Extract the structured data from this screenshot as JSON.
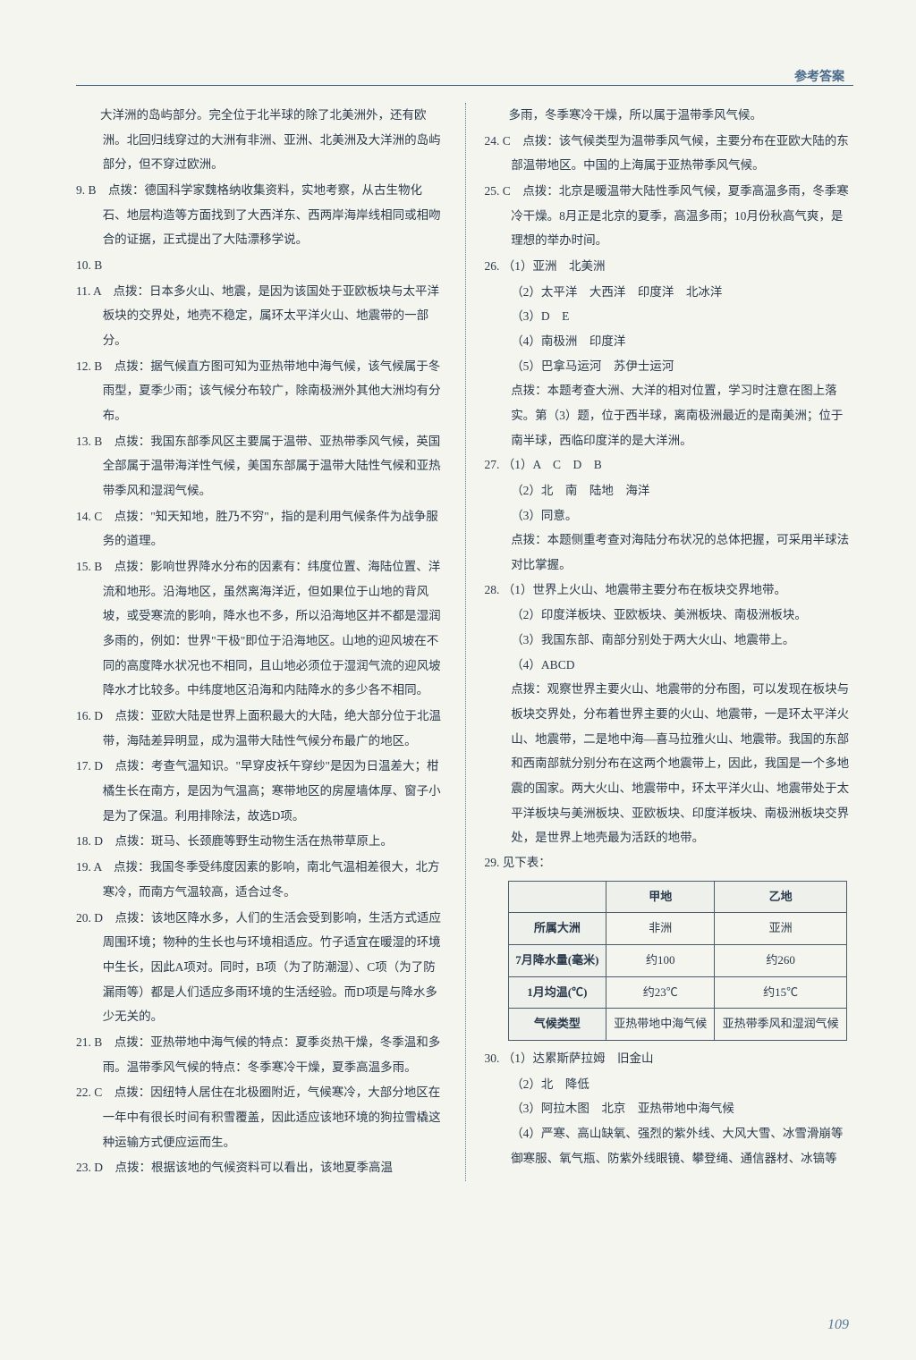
{
  "header": {
    "label": "参考答案"
  },
  "pageNumber": "109",
  "left": [
    {
      "t": "item",
      "text": "　　大洋洲的岛屿部分。完全位于北半球的除了北美洲外，还有欧洲。北回归线穿过的大洲有非洲、亚洲、北美洲及大洋洲的岛屿部分，但不穿过欧洲。"
    },
    {
      "t": "item",
      "text": "9. B　点拨：德国科学家魏格纳收集资料，实地考察，从古生物化石、地层构造等方面找到了大西洋东、西两岸海岸线相同或相吻合的证据，正式提出了大陆漂移学说。"
    },
    {
      "t": "item",
      "text": "10. B"
    },
    {
      "t": "item",
      "text": "11. A　点拨：日本多火山、地震，是因为该国处于亚欧板块与太平洋板块的交界处，地壳不稳定，属环太平洋火山、地震带的一部分。"
    },
    {
      "t": "item",
      "text": "12. B　点拨：据气候直方图可知为亚热带地中海气候，该气候属于冬雨型，夏季少雨；该气候分布较广，除南极洲外其他大洲均有分布。"
    },
    {
      "t": "item",
      "text": "13. B　点拨：我国东部季风区主要属于温带、亚热带季风气候，英国全部属于温带海洋性气候，美国东部属于温带大陆性气候和亚热带季风和湿润气候。"
    },
    {
      "t": "item",
      "text": "14. C　点拨：\"知天知地，胜乃不穷\"，指的是利用气候条件为战争服务的道理。"
    },
    {
      "t": "item",
      "text": "15. B　点拨：影响世界降水分布的因素有：纬度位置、海陆位置、洋流和地形。沿海地区，虽然离海洋近，但如果位于山地的背风坡，或受寒流的影响，降水也不多，所以沿海地区并不都是湿润多雨的，例如：世界\"干极\"即位于沿海地区。山地的迎风坡在不同的高度降水状况也不相同，且山地必须位于湿润气流的迎风坡降水才比较多。中纬度地区沿海和内陆降水的多少各不相同。"
    },
    {
      "t": "item",
      "text": "16. D　点拨：亚欧大陆是世界上面积最大的大陆，绝大部分位于北温带，海陆差异明显，成为温带大陆性气候分布最广的地区。"
    },
    {
      "t": "item",
      "text": "17. D　点拨：考查气温知识。\"早穿皮袄午穿纱\"是因为日温差大；柑橘生长在南方，是因为气温高；寒带地区的房屋墙体厚、窗子小是为了保温。利用排除法，故选D项。"
    },
    {
      "t": "item",
      "text": "18. D　点拨：斑马、长颈鹿等野生动物生活在热带草原上。"
    },
    {
      "t": "item",
      "text": "19. A　点拨：我国冬季受纬度因素的影响，南北气温相差很大，北方寒冷，而南方气温较高，适合过冬。"
    },
    {
      "t": "item",
      "text": "20. D　点拨：该地区降水多，人们的生活会受到影响，生活方式适应周围环境；物种的生长也与环境相适应。竹子适宜在暖湿的环境中生长，因此A项对。同时，B项（为了防潮湿）、C项（为了防漏雨等）都是人们适应多雨环境的生活经验。而D项是与降水多少无关的。"
    },
    {
      "t": "item",
      "text": "21. B　点拨：亚热带地中海气候的特点：夏季炎热干燥，冬季温和多雨。温带季风气候的特点：冬季寒冷干燥，夏季高温多雨。"
    },
    {
      "t": "item",
      "text": "22. C　点拨：因纽特人居住在北极圈附近，气候寒冷，大部分地区在一年中有很长时间有积雪覆盖，因此适应该地环境的狗拉雪橇这种运输方式便应运而生。"
    },
    {
      "t": "item",
      "text": "23. D　点拨：根据该地的气候资料可以看出，该地夏季高温"
    }
  ],
  "right": [
    {
      "t": "item",
      "text": "　　多雨，冬季寒冷干燥，所以属于温带季风气候。"
    },
    {
      "t": "item",
      "text": "24. C　点拨：该气候类型为温带季风气候，主要分布在亚欧大陆的东部温带地区。中国的上海属于亚热带季风气候。"
    },
    {
      "t": "item",
      "text": "25. C　点拨：北京是暖温带大陆性季风气候，夏季高温多雨，冬季寒冷干燥。8月正是北京的夏季，高温多雨；10月份秋高气爽，是理想的举办时间。"
    },
    {
      "t": "item",
      "text": "26. （1）亚洲　北美洲"
    },
    {
      "t": "sub",
      "text": "（2）太平洋　大西洋　印度洋　北冰洋"
    },
    {
      "t": "sub",
      "text": "（3）D　E"
    },
    {
      "t": "sub",
      "text": "（4）南极洲　印度洋"
    },
    {
      "t": "sub",
      "text": "（5）巴拿马运河　苏伊士运河"
    },
    {
      "t": "sub",
      "text": "点拨：本题考查大洲、大洋的相对位置，学习时注意在图上落实。第（3）题，位于西半球，离南极洲最近的是南美洲；位于南半球，西临印度洋的是大洋洲。"
    },
    {
      "t": "item",
      "text": "27. （1）A　C　D　B"
    },
    {
      "t": "sub",
      "text": "（2）北　南　陆地　海洋"
    },
    {
      "t": "sub",
      "text": "（3）同意。"
    },
    {
      "t": "sub",
      "text": "点拨：本题侧重考查对海陆分布状况的总体把握，可采用半球法对比掌握。"
    },
    {
      "t": "item",
      "text": "28. （1）世界上火山、地震带主要分布在板块交界地带。"
    },
    {
      "t": "sub",
      "text": "（2）印度洋板块、亚欧板块、美洲板块、南极洲板块。"
    },
    {
      "t": "sub",
      "text": "（3）我国东部、南部分别处于两大火山、地震带上。"
    },
    {
      "t": "sub",
      "text": "（4）ABCD"
    },
    {
      "t": "sub",
      "text": "点拨：观察世界主要火山、地震带的分布图，可以发现在板块与板块交界处，分布着世界主要的火山、地震带，一是环太平洋火山、地震带，二是地中海—喜马拉雅火山、地震带。我国的东部和西南部就分别分布在这两个地震带上，因此，我国是一个多地震的国家。两大火山、地震带中，环太平洋火山、地震带处于太平洋板块与美洲板块、亚欧板块、印度洋板块、南极洲板块交界处，是世界上地壳最为活跃的地带。"
    },
    {
      "t": "item",
      "text": "29. 见下表："
    }
  ],
  "table29": {
    "head": [
      "",
      "甲地",
      "乙地"
    ],
    "rows": [
      [
        "所属大洲",
        "非洲",
        "亚洲"
      ],
      [
        "7月降水量(毫米)",
        "约100",
        "约260"
      ],
      [
        "1月均温(℃)",
        "约23℃",
        "约15℃"
      ],
      [
        "气候类型",
        "亚热带地中海气候",
        "亚热带季风和湿润气候"
      ]
    ]
  },
  "right2": [
    {
      "t": "item",
      "text": "30. （1）达累斯萨拉姆　旧金山"
    },
    {
      "t": "sub",
      "text": "（2）北　降低"
    },
    {
      "t": "sub",
      "text": "（3）阿拉木图　北京　亚热带地中海气候"
    },
    {
      "t": "sub",
      "text": "（4）严寒、高山缺氧、强烈的紫外线、大风大雪、冰雪滑崩等　御寒服、氧气瓶、防紫外线眼镜、攀登绳、通信器材、冰镐等"
    }
  ]
}
